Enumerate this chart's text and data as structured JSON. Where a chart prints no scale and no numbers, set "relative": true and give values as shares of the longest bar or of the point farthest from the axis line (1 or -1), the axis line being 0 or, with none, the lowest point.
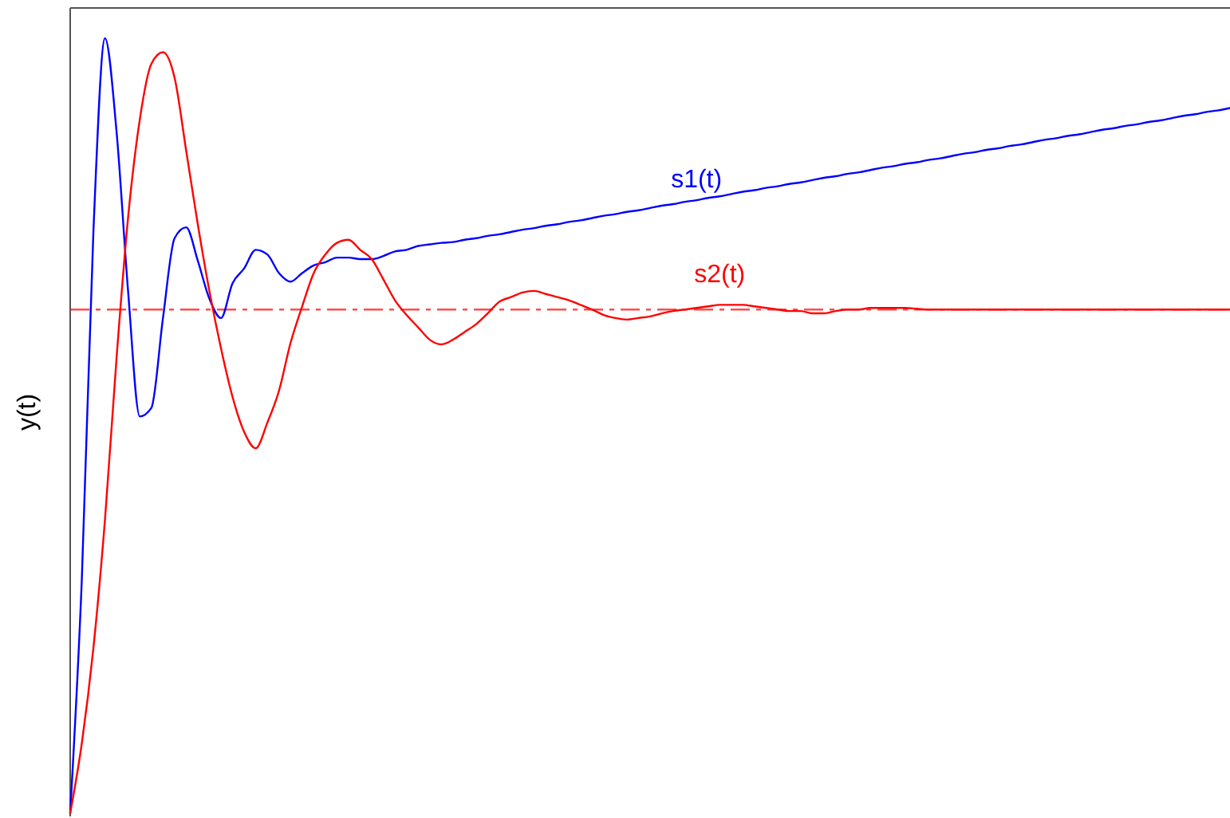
{
  "chart_data": {
    "type": "line",
    "relative": true,
    "ylabel": "y(t)",
    "categories": [
      null,
      null,
      null,
      null,
      null,
      null,
      null,
      null,
      null,
      null,
      null,
      null,
      null,
      null,
      null,
      null,
      null,
      null,
      null,
      null,
      null,
      null,
      null,
      null,
      null,
      null,
      null,
      null,
      null,
      null,
      null,
      null,
      null,
      null,
      null,
      null,
      null,
      null,
      null,
      null,
      null,
      null,
      null,
      null,
      null,
      null,
      null,
      null,
      null,
      null,
      null,
      null,
      null,
      null,
      null,
      null,
      null,
      null,
      null,
      null,
      null,
      null,
      null,
      null,
      null,
      null,
      null,
      null,
      null,
      null,
      null,
      null,
      null,
      null,
      null,
      null,
      null,
      null,
      null,
      null,
      null,
      null,
      null,
      null,
      null,
      null,
      null,
      null,
      null,
      null,
      null,
      null,
      null,
      null,
      null,
      null,
      null,
      null,
      null,
      null,
      null
    ],
    "ref_lines": [
      {
        "axis": "y",
        "value": 0.65,
        "color": "#ff0000",
        "line_style": "dashed"
      }
    ],
    "series": [
      {
        "name": "s1(t)",
        "color": "#0000ff",
        "values": [
          0,
          0.301,
          0.75,
          1.0,
          0.879,
          0.672,
          0.512,
          0.523,
          0.639,
          0.742,
          0.756,
          0.713,
          0.664,
          0.639,
          0.684,
          0.703,
          0.727,
          0.721,
          0.697,
          0.686,
          0.697,
          0.707,
          0.711,
          0.717,
          0.717,
          0.715,
          0.715,
          0.719,
          0.725,
          0.727,
          0.732,
          0.734,
          0.736,
          0.737,
          0.74,
          0.742,
          0.745,
          0.747,
          0.75,
          0.753,
          0.755,
          0.758,
          0.76,
          0.763,
          0.765,
          0.768,
          0.771,
          0.773,
          0.776,
          0.778,
          0.781,
          0.784,
          0.786,
          0.789,
          0.791,
          0.794,
          0.796,
          0.799,
          0.802,
          0.804,
          0.807,
          0.809,
          0.812,
          0.814,
          0.817,
          0.82,
          0.822,
          0.825,
          0.827,
          0.83,
          0.833,
          0.835,
          0.838,
          0.84,
          0.843,
          0.845,
          0.848,
          0.851,
          0.853,
          0.856,
          0.858,
          0.861,
          0.863,
          0.866,
          0.869,
          0.871,
          0.874,
          0.876,
          0.879,
          0.882,
          0.884,
          0.887,
          0.889,
          0.892,
          0.894,
          0.897,
          0.9,
          0.902,
          0.905,
          0.907,
          0.91
        ]
      },
      {
        "name": "s2(t)",
        "color": "#ff0000",
        "values": [
          0,
          0.09,
          0.213,
          0.379,
          0.588,
          0.77,
          0.895,
          0.967,
          0.982,
          0.949,
          0.855,
          0.76,
          0.674,
          0.6,
          0.537,
          0.492,
          0.471,
          0.504,
          0.545,
          0.607,
          0.654,
          0.697,
          0.721,
          0.736,
          0.74,
          0.727,
          0.715,
          0.689,
          0.662,
          0.643,
          0.627,
          0.611,
          0.605,
          0.611,
          0.621,
          0.631,
          0.645,
          0.66,
          0.666,
          0.672,
          0.674,
          0.67,
          0.666,
          0.662,
          0.656,
          0.65,
          0.643,
          0.639,
          0.637,
          0.639,
          0.641,
          0.645,
          0.648,
          0.65,
          0.652,
          0.654,
          0.656,
          0.656,
          0.656,
          0.654,
          0.652,
          0.65,
          0.648,
          0.648,
          0.645,
          0.645,
          0.648,
          0.65,
          0.65,
          0.652,
          0.652,
          0.652,
          0.652,
          0.651,
          0.65,
          0.65,
          0.65,
          0.65,
          0.65,
          0.65,
          0.65,
          0.65,
          0.65,
          0.65,
          0.65,
          0.65,
          0.65,
          0.65,
          0.65,
          0.65,
          0.65,
          0.65,
          0.65,
          0.65,
          0.65,
          0.65,
          0.65,
          0.65,
          0.65,
          0.65,
          0.65
        ]
      }
    ]
  }
}
